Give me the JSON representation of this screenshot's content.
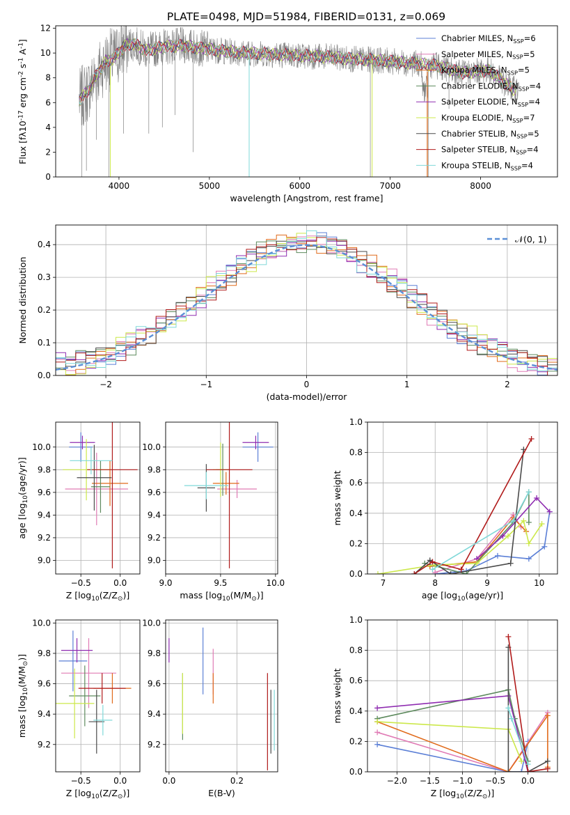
{
  "figure": {
    "title": "PLATE=0498, MJD=51984, FIBERID=0131, z=0.069"
  },
  "colors": {
    "chabrier_miles": "#5b7fd6",
    "salpeter_miles": "#e07bb5",
    "kroupa_miles": "#e06a1a",
    "chabrier_elodie": "#5d8a5d",
    "salpeter_elodie": "#8e2bb0",
    "kroupa_elodie": "#cce84a",
    "chabrier_stelib": "#4a4a4a",
    "salpeter_stelib": "#b01a1a",
    "kroupa_stelib": "#7fd8d8",
    "data": "#808080",
    "normal": "#5b8fd6"
  },
  "chart_data": [
    {
      "id": "spectrum",
      "type": "line",
      "title": "PLATE=0498, MJD=51984, FIBERID=0131, z=0.069",
      "xlabel": "wavelength [Angstrom, rest frame]",
      "ylabel": "Flux [f$\\lambda$10$^{-17}$ erg cm$^{-2}$ s$^{-1}$ A$^{-1}$]",
      "xlim": [
        3300,
        8850
      ],
      "ylim": [
        0,
        12.2
      ],
      "xticks": [
        "4000",
        "5000",
        "6000",
        "7000",
        "8000"
      ],
      "yticks": [
        "0",
        "2",
        "4",
        "6",
        "8",
        "10",
        "12"
      ],
      "legend_position": "top-right",
      "grid": false,
      "continuum_x": [
        3550,
        3650,
        3750,
        3850,
        3950,
        4050,
        4150,
        4300,
        4500,
        4700,
        4900,
        5100,
        5400,
        5700,
        6000,
        6300,
        6600,
        6900,
        7200,
        7500,
        7800,
        8100,
        8350
      ],
      "continuum_y": [
        6.1,
        6.9,
        8.2,
        9.3,
        9.6,
        10.5,
        10.8,
        10.2,
        10.5,
        10.6,
        10.4,
        10.2,
        10.0,
        9.9,
        9.8,
        9.7,
        9.5,
        9.4,
        9.2,
        9.0,
        8.4,
        8.6,
        7.1
      ],
      "series": [
        {
          "name": "Chabrier MILES, N$_{SSP}$=6"
        },
        {
          "name": "Salpeter MILES, N$_{SSP}$=5"
        },
        {
          "name": "Kroupa MILES, N$_{SSP}$=5"
        },
        {
          "name": "Chabrier ELODIE, N$_{SSP}$=4"
        },
        {
          "name": "Salpeter ELODIE, N$_{SSP}$=4"
        },
        {
          "name": "Kroupa ELODIE, N$_{SSP}$=7"
        },
        {
          "name": "Chabrier STELIB, N$_{SSP}$=5"
        },
        {
          "name": "Salpeter STELIB, N$_{SSP}$=4"
        },
        {
          "name": "Kroupa STELIB, N$_{SSP}$=4"
        }
      ]
    },
    {
      "id": "residuals",
      "type": "line",
      "xlabel": "(data-model)/error",
      "ylabel": "Normed distribution",
      "xlim": [
        -2.5,
        2.5
      ],
      "ylim": [
        0,
        0.46
      ],
      "xticks": [
        "−2",
        "−1",
        "0",
        "1",
        "2"
      ],
      "yticks": [
        "0.0",
        "0.1",
        "0.2",
        "0.3",
        "0.4"
      ],
      "grid": true,
      "legend_position": "top-right",
      "legend": "$\\mathcal{N}(0, 1)$",
      "bin_width": 0.1,
      "note": "nine histograms (one per model, same colors as spectrum panel) scattering around a standard normal curve"
    },
    {
      "id": "age_vs_z",
      "type": "scatter",
      "xlabel": "Z [log$_{10}$($Z/Z_\\odot$)]",
      "ylabel": "age  [log$_{10}$($age/yr$)]",
      "xlim": [
        -0.82,
        0.25
      ],
      "ylim": [
        8.88,
        10.22
      ],
      "xticks": [
        "−0.5",
        "0.0"
      ],
      "yticks": [
        "9.0",
        "9.2",
        "9.4",
        "9.6",
        "9.8",
        "10.0"
      ],
      "grid": true,
      "points": [
        {
          "model": "chabrier_miles",
          "x": -0.5,
          "xerr": 0.15,
          "y": 10.0,
          "yerr": 0.13
        },
        {
          "model": "salpeter_miles",
          "x": -0.3,
          "xerr": 0.4,
          "y": 9.63,
          "yerr": 0.32
        },
        {
          "model": "kroupa_miles",
          "x": -0.13,
          "xerr": 0.23,
          "y": 9.68,
          "yerr": 0.2
        },
        {
          "model": "chabrier_elodie",
          "x": -0.25,
          "xerr": 0.12,
          "y": 9.65,
          "yerr": 0.23
        },
        {
          "model": "salpeter_elodie",
          "x": -0.48,
          "xerr": 0.16,
          "y": 10.04,
          "yerr": 0.06
        },
        {
          "model": "kroupa_elodie",
          "x": -0.43,
          "xerr": 0.3,
          "y": 9.8,
          "yerr": 0.27
        },
        {
          "model": "chabrier_stelib",
          "x": -0.33,
          "xerr": 0.22,
          "y": 9.73,
          "yerr": 0.29
        },
        {
          "model": "salpeter_stelib",
          "x": -0.1,
          "xerr": 0.32,
          "y": 9.8,
          "yerr": 0.87
        },
        {
          "model": "kroupa_stelib",
          "x": -0.37,
          "xerr": 0.27,
          "y": 9.88,
          "yerr": 0.12
        }
      ]
    },
    {
      "id": "age_vs_mass",
      "type": "scatter",
      "xlabel": "mass [log$_{10}$($M/M_\\odot$)]",
      "xlim": [
        9.0,
        10.02
      ],
      "ylim": [
        8.88,
        10.22
      ],
      "xticks": [
        "9.0",
        "9.5",
        "10.0"
      ],
      "yticks": [
        "9.0",
        "9.2",
        "9.4",
        "9.6",
        "9.8",
        "10.0"
      ],
      "grid": true,
      "points": [
        {
          "model": "chabrier_miles",
          "x": 9.84,
          "xerr": 0.14,
          "y": 10.0,
          "yerr": 0.13
        },
        {
          "model": "salpeter_miles",
          "x": 9.65,
          "xerr": 0.18,
          "y": 9.63,
          "yerr": 0.08
        },
        {
          "model": "kroupa_miles",
          "x": 9.55,
          "xerr": 0.12,
          "y": 9.68,
          "yerr": 0.1
        },
        {
          "model": "chabrier_elodie",
          "x": 9.52,
          "xerr": 0.06,
          "y": 9.8,
          "yerr": 0.23
        },
        {
          "model": "salpeter_elodie",
          "x": 9.82,
          "xerr": 0.12,
          "y": 10.04,
          "yerr": 0.06
        },
        {
          "model": "kroupa_elodie",
          "x": 9.5,
          "xerr": 0.07,
          "y": 9.8,
          "yerr": 0.24
        },
        {
          "model": "chabrier_stelib",
          "x": 9.37,
          "xerr": 0.08,
          "y": 9.64,
          "yerr": 0.21
        },
        {
          "model": "salpeter_stelib",
          "x": 9.58,
          "xerr": 0.21,
          "y": 9.8,
          "yerr": 0.87
        },
        {
          "model": "kroupa_stelib",
          "x": 9.37,
          "xerr": 0.2,
          "y": 9.66,
          "yerr": 0.12
        }
      ]
    },
    {
      "id": "weight_vs_age",
      "type": "line",
      "xlabel": "age  [log$_{10}$($age/yr$)]",
      "ylabel": "mass weight",
      "xlim": [
        6.7,
        10.35
      ],
      "ylim": [
        0,
        1.0
      ],
      "xticks": [
        "7",
        "8",
        "9",
        "10"
      ],
      "yticks": [
        "0.0",
        "0.2",
        "0.4",
        "0.6",
        "0.8",
        "1.0"
      ],
      "grid": true,
      "series": [
        {
          "model": "chabrier_miles",
          "x": [
            8.0,
            8.6,
            9.2,
            9.8,
            10.1,
            10.2
          ],
          "y": [
            0.0,
            0.02,
            0.12,
            0.1,
            0.18,
            0.41
          ]
        },
        {
          "model": "salpeter_miles",
          "x": [
            8.0,
            8.8,
            9.5,
            9.65
          ],
          "y": [
            0.01,
            0.1,
            0.39,
            0.31
          ]
        },
        {
          "model": "kroupa_miles",
          "x": [
            7.9,
            8.8,
            9.5,
            9.75
          ],
          "y": [
            0.05,
            0.08,
            0.37,
            0.28
          ]
        },
        {
          "model": "chabrier_elodie",
          "x": [
            7.8,
            8.6,
            9.5,
            9.8,
            9.8
          ],
          "y": [
            0.07,
            0.0,
            0.34,
            0.54,
            0.34
          ]
        },
        {
          "model": "salpeter_elodie",
          "x": [
            8.8,
            9.3,
            9.95,
            10.2
          ],
          "y": [
            0.1,
            0.25,
            0.5,
            0.41
          ]
        },
        {
          "model": "kroupa_elodie",
          "x": [
            6.9,
            8.0,
            8.8,
            9.4,
            9.7,
            9.8,
            10.05
          ],
          "y": [
            0.0,
            0.06,
            0.07,
            0.25,
            0.35,
            0.2,
            0.33
          ]
        },
        {
          "model": "chabrier_stelib",
          "x": [
            7.6,
            7.9,
            8.3,
            9.45,
            9.7
          ],
          "y": [
            0.0,
            0.09,
            0.0,
            0.07,
            0.82
          ]
        },
        {
          "model": "salpeter_stelib",
          "x": [
            7.6,
            7.95,
            8.5,
            9.85
          ],
          "y": [
            0.0,
            0.08,
            0.03,
            0.89
          ]
        },
        {
          "model": "kroupa_stelib",
          "x": [
            7.95,
            9.5,
            9.8
          ],
          "y": [
            0.03,
            0.35,
            0.54
          ]
        }
      ]
    },
    {
      "id": "mass_vs_z",
      "type": "scatter",
      "xlabel": "Z [log$_{10}$($Z/Z_\\odot$)]",
      "ylabel": "mass [log$_{10}$($M/M_\\odot$)]",
      "xlim": [
        -0.82,
        0.25
      ],
      "ylim": [
        9.02,
        10.02
      ],
      "xticks": [
        "−0.5",
        "0.0"
      ],
      "yticks": [
        "9.2",
        "9.4",
        "9.6",
        "9.8",
        "10.0"
      ],
      "grid": true,
      "points": [
        {
          "model": "chabrier_miles",
          "x": -0.6,
          "xerr": 0.18,
          "y": 9.75,
          "yerr": 0.2
        },
        {
          "model": "salpeter_miles",
          "x": -0.4,
          "xerr": 0.35,
          "y": 9.67,
          "yerr": 0.23
        },
        {
          "model": "kroupa_miles",
          "x": -0.1,
          "xerr": 0.24,
          "y": 9.57,
          "yerr": 0.1
        },
        {
          "model": "chabrier_elodie",
          "x": -0.45,
          "xerr": 0.2,
          "y": 9.52,
          "yerr": 0.2
        },
        {
          "model": "salpeter_elodie",
          "x": -0.55,
          "xerr": 0.2,
          "y": 9.82,
          "yerr": 0.08
        },
        {
          "model": "kroupa_elodie",
          "x": -0.58,
          "xerr": 0.25,
          "y": 9.47,
          "yerr": 0.23
        },
        {
          "model": "chabrier_stelib",
          "x": -0.3,
          "xerr": 0.1,
          "y": 9.35,
          "yerr": 0.21
        },
        {
          "model": "salpeter_stelib",
          "x": -0.23,
          "xerr": 0.3,
          "y": 9.57,
          "yerr": 0.1
        },
        {
          "model": "kroupa_stelib",
          "x": -0.22,
          "xerr": 0.12,
          "y": 9.36,
          "yerr": 0.1
        }
      ]
    },
    {
      "id": "mass_vs_ebv",
      "type": "scatter",
      "xlabel": "E(B-V)",
      "xlim": [
        -0.01,
        0.32
      ],
      "ylim": [
        9.02,
        10.02
      ],
      "xticks": [
        "0.0",
        "0.2"
      ],
      "yticks": [
        "9.2",
        "9.4",
        "9.6",
        "9.8",
        "10.0"
      ],
      "grid": true,
      "points": [
        {
          "model": "chabrier_miles",
          "x": 0.1,
          "y": 9.75,
          "yerr": 0.22
        },
        {
          "model": "salpeter_miles",
          "x": 0.13,
          "y": 9.68,
          "yerr": 0.15
        },
        {
          "model": "kroupa_miles",
          "x": 0.13,
          "y": 9.57,
          "yerr": 0.1
        },
        {
          "model": "chabrier_elodie",
          "x": 0.04,
          "y": 9.45,
          "yerr": 0.22
        },
        {
          "model": "salpeter_elodie",
          "x": 0.0,
          "y": 9.82,
          "yerr": 0.08
        },
        {
          "model": "kroupa_elodie",
          "x": 0.04,
          "y": 9.47,
          "yerr": 0.2
        },
        {
          "model": "chabrier_stelib",
          "x": 0.3,
          "y": 9.35,
          "yerr": 0.21
        },
        {
          "model": "salpeter_stelib",
          "x": 0.29,
          "y": 9.35,
          "yerr": 0.32
        },
        {
          "model": "kroupa_stelib",
          "x": 0.31,
          "y": 9.36,
          "yerr": 0.2
        }
      ]
    },
    {
      "id": "weight_vs_z",
      "type": "line",
      "xlabel": "Z [log$_{10}$($Z/Z_\\odot$)]",
      "ylabel": "mass weight",
      "xlim": [
        -2.45,
        0.45
      ],
      "ylim": [
        0,
        1.0
      ],
      "xticks": [
        "−2.0",
        "−1.5",
        "−1.0",
        "−0.5",
        "0.0"
      ],
      "yticks": [
        "0.0",
        "0.2",
        "0.4",
        "0.6",
        "0.8",
        "1.0"
      ],
      "grid": true,
      "series": [
        {
          "model": "chabrier_miles",
          "x": [
            -2.3,
            -0.3,
            -0.1,
            0.0
          ],
          "y": [
            0.18,
            0.0,
            0.0,
            0.2
          ]
        },
        {
          "model": "salpeter_miles",
          "x": [
            -2.3,
            -0.3,
            0.3
          ],
          "y": [
            0.26,
            0.0,
            0.39
          ]
        },
        {
          "model": "kroupa_miles",
          "x": [
            -2.3,
            -0.3,
            0.3,
            0.3
          ],
          "y": [
            0.33,
            0.0,
            0.37,
            0.03
          ]
        },
        {
          "model": "chabrier_elodie",
          "x": [
            -2.3,
            -0.3,
            -0.2,
            0.0
          ],
          "y": [
            0.35,
            0.54,
            0.35,
            0.07
          ]
        },
        {
          "model": "salpeter_elodie",
          "x": [
            -2.3,
            -0.3,
            0.0
          ],
          "y": [
            0.42,
            0.5,
            0.0
          ]
        },
        {
          "model": "kroupa_elodie",
          "x": [
            -2.3,
            -0.3,
            -0.1
          ],
          "y": [
            0.33,
            0.28,
            0.07
          ]
        },
        {
          "model": "chabrier_stelib",
          "x": [
            -0.3,
            -0.3,
            0.0,
            0.3
          ],
          "y": [
            0.82,
            0.0,
            0.0,
            0.07
          ]
        },
        {
          "model": "salpeter_stelib",
          "x": [
            -0.3,
            0.0,
            0.3
          ],
          "y": [
            0.89,
            0.0,
            0.02
          ]
        },
        {
          "model": "kroupa_stelib",
          "x": [
            -0.3,
            -0.25,
            0.0
          ],
          "y": [
            0.42,
            0.35,
            0.05
          ]
        }
      ]
    }
  ]
}
